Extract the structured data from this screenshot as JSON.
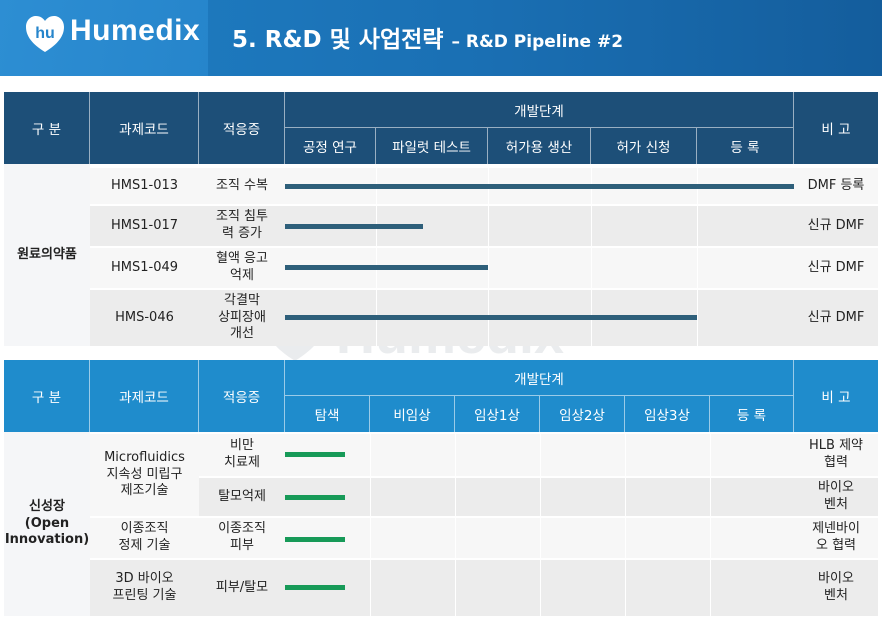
{
  "header": {
    "brand": "Humedix",
    "title": "5. R&D 및 사업전략",
    "subtitle": "– R&D Pipeline #2"
  },
  "watermark": {
    "text": "Humedix"
  },
  "table1": {
    "col_category": "구 분",
    "col_code": "과제코드",
    "col_indication": "적응증",
    "col_stages_group": "개발단계",
    "col_note": "비 고",
    "stages": [
      "공정 연구",
      "파일럿 테스트",
      "허가용 생산",
      "허가 신청",
      "등 록"
    ],
    "category": "원료의약품",
    "rows": [
      {
        "code": "HMS1-013",
        "indication": "조직 수복",
        "note": "DMF 등록",
        "progress_stages": 5.0
      },
      {
        "code": "HMS1-017",
        "indication": "조직 침투\n력 증가",
        "note": "신규 DMF",
        "progress_stages": 1.42
      },
      {
        "code": "HMS1-049",
        "indication": "혈액 응고\n억제",
        "note": "신규 DMF",
        "progress_stages": 2.0
      },
      {
        "code": "HMS-046",
        "indication": "각결막\n상피장애\n개선",
        "note": "신규 DMF",
        "progress_stages": 4.0
      }
    ]
  },
  "table2": {
    "col_category": "구 분",
    "col_code": "과제코드",
    "col_indication": "적응증",
    "col_stages_group": "개발단계",
    "col_note": "비 고",
    "stages": [
      "탐색",
      "비임상",
      "임상1상",
      "임상2상",
      "임상3상",
      "등 록"
    ],
    "category": "신성장\n(Open\nInnovation)",
    "rows": [
      {
        "code": "Microfluidics\n지속성 미립구\n제조기술",
        "indication": "비만\n치료제",
        "note": "HLB 제약\n협력",
        "progress_stages": 0.7
      },
      {
        "code": "",
        "indication": "탈모억제",
        "note": "바이오\n벤처",
        "progress_stages": 0.7
      },
      {
        "code": "이종조직\n정제 기술",
        "indication": "이종조직\n피부",
        "note": "제넨바이\n오 협력",
        "progress_stages": 0.7
      },
      {
        "code": "3D 바이오\n프린팅 기술",
        "indication": "피부/탈모",
        "note": "바이오\n벤처",
        "progress_stages": 0.7
      }
    ]
  }
}
